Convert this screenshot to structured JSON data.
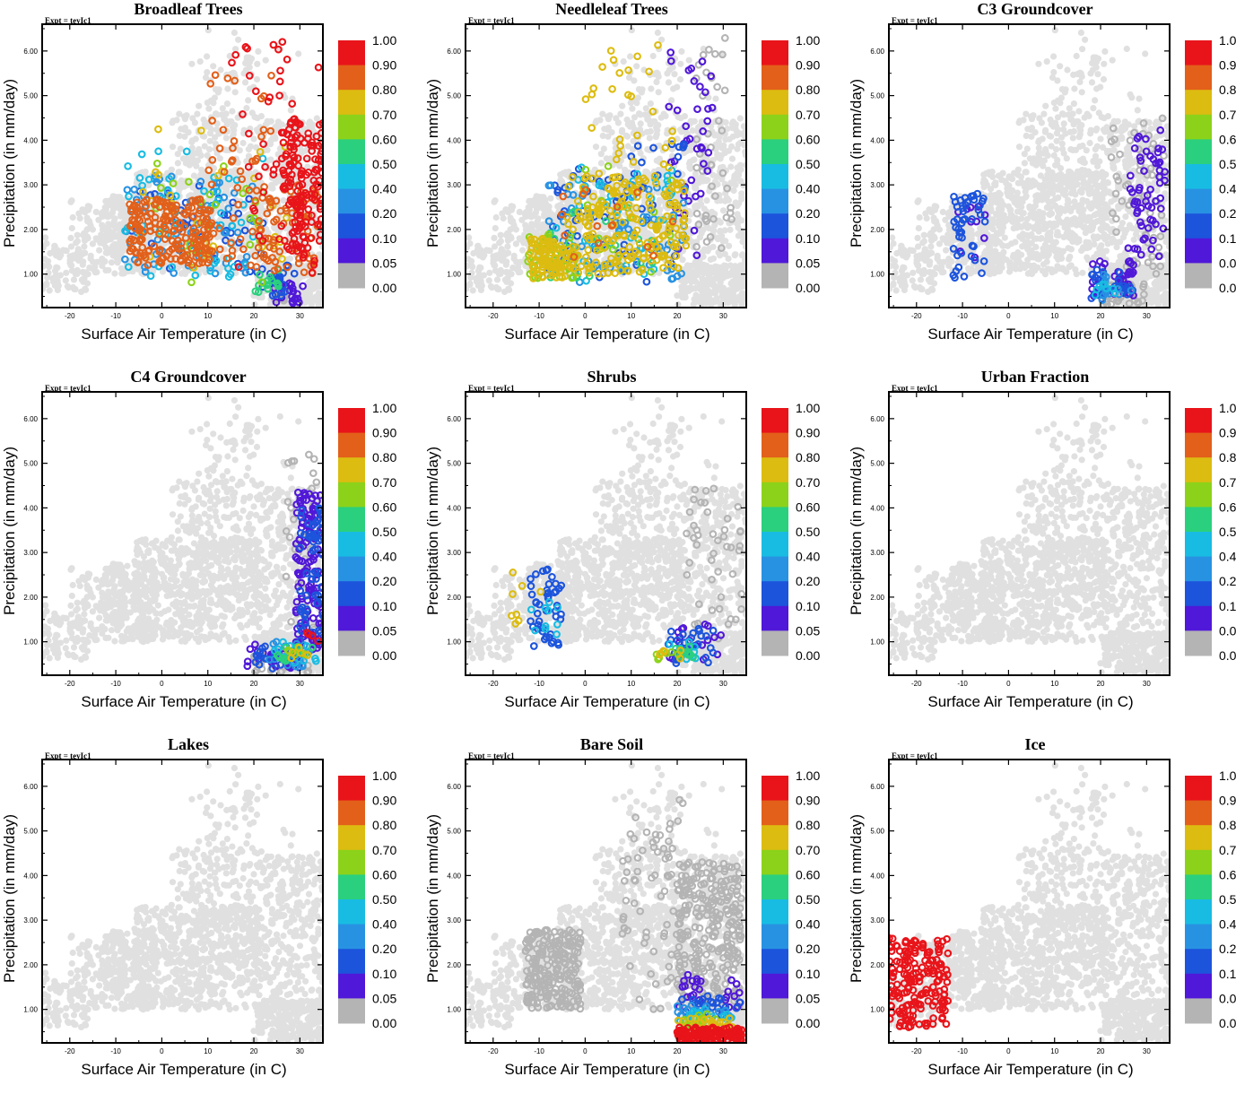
{
  "experiment_label": "Expt = teyIc1",
  "colorbar": {
    "labels": [
      "1.00",
      "0.90",
      "0.80",
      "0.70",
      "0.60",
      "0.50",
      "0.40",
      "0.20",
      "0.10",
      "0.05",
      "0.00"
    ],
    "colors": [
      "#e8141a",
      "#e2601a",
      "#dcbc10",
      "#8cd21a",
      "#2ad07e",
      "#18bce2",
      "#2892e2",
      "#1c54dc",
      "#5018d8",
      "#b4b4b4"
    ]
  },
  "background_point_color": "#e0e0e0",
  "chart_data": [
    {
      "type": "scatter",
      "title": "Broadleaf Trees",
      "xlabel": "Surface Air Temperature (in C)",
      "ylabel": "Precipitation (in mm/day)",
      "xlim": [
        -26,
        35
      ],
      "ylim": [
        0.25,
        6.6
      ],
      "xticks": [
        "-20",
        "-10",
        "0",
        "10",
        "20",
        "30"
      ],
      "yticks": [
        "1.00",
        "2.00",
        "3.00",
        "4.00",
        "5.00",
        "6.00"
      ],
      "series": [
        {
          "name": "fraction 0.00",
          "fraction": 0.0,
          "cloud": [
            [
              24,
              27,
              0.4,
              0.75,
              35
            ]
          ]
        },
        {
          "name": "fraction 0.05",
          "fraction": 0.05,
          "cloud": [
            [
              24,
              31,
              0.35,
              0.8,
              22
            ]
          ]
        },
        {
          "name": "fraction 0.10",
          "fraction": 0.1,
          "cloud": [
            [
              -7,
              22,
              1.0,
              3.0,
              40
            ],
            [
              20,
              29,
              0.5,
              1.2,
              20
            ]
          ]
        },
        {
          "name": "fraction 0.20",
          "fraction": 0.2,
          "cloud": [
            [
              -8,
              20,
              1.0,
              3.2,
              70
            ]
          ]
        },
        {
          "name": "fraction 0.40",
          "fraction": 0.4,
          "cloud": [
            [
              -8,
              22,
              0.8,
              3.8,
              55
            ]
          ]
        },
        {
          "name": "fraction 0.50",
          "fraction": 0.5,
          "cloud": [
            [
              20,
              27,
              0.55,
              1.1,
              15
            ]
          ]
        },
        {
          "name": "fraction 0.60",
          "fraction": 0.6,
          "cloud": [
            [
              -5,
              24,
              0.8,
              3.5,
              25
            ]
          ]
        },
        {
          "name": "fraction 0.70",
          "fraction": 0.7,
          "cloud": [
            [
              -5,
              28,
              1.0,
              4.5,
              30
            ]
          ]
        },
        {
          "name": "fraction 0.80",
          "fraction": 0.8,
          "cloud": [
            [
              -7,
              11,
              1.2,
              2.7,
              190
            ],
            [
              10,
              24,
              1.0,
              5.5,
              45
            ],
            [
              19,
              34,
              1.0,
              3.0,
              70
            ]
          ]
        },
        {
          "name": "fraction 0.90",
          "fraction": 0.9,
          "cloud": [
            [
              26,
              35,
              1.5,
              4.5,
              140
            ],
            [
              15,
              35,
              1.0,
              6.4,
              55
            ]
          ]
        }
      ]
    },
    {
      "type": "scatter",
      "title": "Needleleaf Trees",
      "xlabel": "Surface Air Temperature (in C)",
      "ylabel": "Precipitation (in mm/day)",
      "xlim": [
        -26,
        35
      ],
      "ylim": [
        0.25,
        6.6
      ],
      "xticks": [
        "-20",
        "-10",
        "0",
        "10",
        "20",
        "30"
      ],
      "yticks": [
        "1.00",
        "2.00",
        "3.00",
        "4.00",
        "5.00",
        "6.00"
      ],
      "series": [
        {
          "name": "fraction 0.00",
          "fraction": 0.0,
          "cloud": [
            [
              24,
              32,
              1.5,
              6.3,
              40
            ]
          ]
        },
        {
          "name": "fraction 0.05",
          "fraction": 0.05,
          "cloud": [
            [
              18,
              28,
              1.0,
              6.3,
              40
            ]
          ]
        },
        {
          "name": "fraction 0.10",
          "fraction": 0.1,
          "cloud": [
            [
              -8,
              22,
              0.8,
              4.0,
              70
            ]
          ]
        },
        {
          "name": "fraction 0.20",
          "fraction": 0.2,
          "cloud": [
            [
              -8,
              22,
              0.8,
              3.0,
              80
            ]
          ]
        },
        {
          "name": "fraction 0.40",
          "fraction": 0.4,
          "cloud": [
            [
              -8,
              20,
              0.8,
              3.4,
              50
            ]
          ]
        },
        {
          "name": "fraction 0.50",
          "fraction": 0.5,
          "cloud": [
            [
              -10,
              15,
              0.9,
              2.5,
              20
            ]
          ]
        },
        {
          "name": "fraction 0.60",
          "fraction": 0.6,
          "cloud": [
            [
              -13,
              -2,
              0.9,
              1.9,
              35
            ],
            [
              0,
              20,
              1.0,
              3.5,
              15
            ]
          ]
        },
        {
          "name": "fraction 0.70",
          "fraction": 0.7,
          "cloud": [
            [
              -12,
              -4,
              0.9,
              1.8,
              90
            ],
            [
              -4,
              22,
              1.0,
              3.2,
              210
            ],
            [
              0,
              20,
              3.0,
              6.3,
              30
            ]
          ]
        },
        {
          "name": "fraction 0.80",
          "fraction": 0.8,
          "cloud": [
            [
              -6,
              20,
              1.2,
              3.0,
              15
            ]
          ]
        }
      ]
    },
    {
      "type": "scatter",
      "title": "C3 Groundcover",
      "xlabel": "Surface Air Temperature (in C)",
      "ylabel": "Precipitation (in mm/day)",
      "xlim": [
        -26,
        35
      ],
      "ylim": [
        0.25,
        6.6
      ],
      "xticks": [
        "-20",
        "-10",
        "0",
        "10",
        "20",
        "30"
      ],
      "yticks": [
        "1.00",
        "2.00",
        "3.00",
        "4.00",
        "5.00",
        "6.00"
      ],
      "series": [
        {
          "name": "fraction 0.00",
          "fraction": 0.0,
          "cloud": [
            [
              22,
              34,
              1.0,
              4.5,
              60
            ],
            [
              20,
              30,
              0.3,
              0.8,
              35
            ]
          ]
        },
        {
          "name": "fraction 0.05",
          "fraction": 0.05,
          "cloud": [
            [
              26,
              34,
              1.2,
              4.3,
              60
            ],
            [
              18,
              28,
              0.5,
              1.3,
              35
            ],
            [
              -11,
              -5,
              1.2,
              2.6,
              10
            ]
          ]
        },
        {
          "name": "fraction 0.10",
          "fraction": 0.1,
          "cloud": [
            [
              -12,
              -5,
              0.9,
              2.8,
              45
            ],
            [
              18,
              27,
              0.4,
              1.2,
              30
            ]
          ]
        },
        {
          "name": "fraction 0.20",
          "fraction": 0.2,
          "cloud": [
            [
              20,
              27,
              0.4,
              1.0,
              12
            ]
          ]
        },
        {
          "name": "fraction 0.40",
          "fraction": 0.4,
          "cloud": [
            [
              18,
              24,
              0.5,
              0.8,
              8
            ]
          ]
        }
      ]
    },
    {
      "type": "scatter",
      "title": "C4 Groundcover",
      "xlabel": "Surface Air Temperature (in C)",
      "ylabel": "Precipitation (in mm/day)",
      "xlim": [
        -26,
        35
      ],
      "ylim": [
        0.25,
        6.6
      ],
      "xticks": [
        "-20",
        "-10",
        "0",
        "10",
        "20",
        "30"
      ],
      "yticks": [
        "1.00",
        "2.00",
        "3.00",
        "4.00",
        "5.00",
        "6.00"
      ],
      "series": [
        {
          "name": "fraction 0.00",
          "fraction": 0.0,
          "cloud": [
            [
              27,
              34,
              1.0,
              5.2,
              40
            ],
            [
              20,
              32,
              0.3,
              0.8,
              40
            ]
          ]
        },
        {
          "name": "fraction 0.05",
          "fraction": 0.05,
          "cloud": [
            [
              29,
              35,
              0.8,
              4.4,
              140
            ],
            [
              18,
              30,
              0.4,
              1.0,
              30
            ]
          ]
        },
        {
          "name": "fraction 0.10",
          "fraction": 0.1,
          "cloud": [
            [
              30,
              35,
              1.0,
              4.0,
              60
            ],
            [
              20,
              30,
              0.4,
              0.9,
              25
            ]
          ]
        },
        {
          "name": "fraction 0.20",
          "fraction": 0.2,
          "cloud": [
            [
              22,
              32,
              0.4,
              1.0,
              18
            ]
          ]
        },
        {
          "name": "fraction 0.40",
          "fraction": 0.4,
          "cloud": [
            [
              24,
              34,
              0.5,
              1.0,
              12
            ]
          ]
        },
        {
          "name": "fraction 0.50",
          "fraction": 0.5,
          "cloud": [
            [
              25,
              33,
              0.5,
              0.9,
              10
            ]
          ]
        },
        {
          "name": "fraction 0.60",
          "fraction": 0.6,
          "cloud": [
            [
              26,
              33,
              0.6,
              0.9,
              6
            ]
          ]
        },
        {
          "name": "fraction 0.70",
          "fraction": 0.7,
          "cloud": [
            [
              27,
              32,
              0.6,
              0.9,
              5
            ]
          ]
        },
        {
          "name": "fraction 0.90",
          "fraction": 0.9,
          "cloud": [
            [
              30,
              34,
              1.0,
              1.4,
              4
            ]
          ]
        }
      ]
    },
    {
      "type": "scatter",
      "title": "Shrubs",
      "xlabel": "Surface Air Temperature (in C)",
      "ylabel": "Precipitation (in mm/day)",
      "xlim": [
        -26,
        35
      ],
      "ylim": [
        0.25,
        6.6
      ],
      "xticks": [
        "-20",
        "-10",
        "0",
        "10",
        "20",
        "30"
      ],
      "yticks": [
        "1.00",
        "2.00",
        "3.00",
        "4.00",
        "5.00",
        "6.00"
      ],
      "series": [
        {
          "name": "fraction 0.00",
          "fraction": 0.0,
          "cloud": [
            [
              22,
              34,
              1.0,
              4.5,
              45
            ]
          ]
        },
        {
          "name": "fraction 0.05",
          "fraction": 0.05,
          "cloud": [
            [
              18,
              30,
              0.6,
              1.4,
              20
            ]
          ]
        },
        {
          "name": "fraction 0.10",
          "fraction": 0.1,
          "cloud": [
            [
              -12,
              -5,
              0.9,
              2.7,
              45
            ],
            [
              18,
              28,
              0.5,
              1.3,
              30
            ]
          ]
        },
        {
          "name": "fraction 0.40",
          "fraction": 0.4,
          "cloud": [
            [
              -12,
              -6,
              1.0,
              2.2,
              10
            ],
            [
              18,
              25,
              0.6,
              1.0,
              10
            ]
          ]
        },
        {
          "name": "fraction 0.50",
          "fraction": 0.5,
          "cloud": [
            [
              19,
              24,
              0.6,
              0.9,
              10
            ]
          ]
        },
        {
          "name": "fraction 0.60",
          "fraction": 0.6,
          "cloud": [
            [
              15,
              22,
              0.6,
              0.8,
              6
            ]
          ]
        },
        {
          "name": "fraction 0.70",
          "fraction": 0.7,
          "cloud": [
            [
              -16,
              -9,
              1.4,
              2.6,
              8
            ],
            [
              16,
              22,
              0.6,
              0.9,
              6
            ]
          ]
        }
      ]
    },
    {
      "type": "scatter",
      "title": "Urban Fraction",
      "xlabel": "Surface Air Temperature (in C)",
      "ylabel": "Precipitation (in mm/day)",
      "xlim": [
        -26,
        35
      ],
      "ylim": [
        0.25,
        6.6
      ],
      "xticks": [
        "-20",
        "-10",
        "0",
        "10",
        "20",
        "30"
      ],
      "yticks": [
        "1.00",
        "2.00",
        "3.00",
        "4.00",
        "5.00",
        "6.00"
      ],
      "series": []
    },
    {
      "type": "scatter",
      "title": "Lakes",
      "xlabel": "Surface Air Temperature (in C)",
      "ylabel": "Precipitation (in mm/day)",
      "xlim": [
        -26,
        35
      ],
      "ylim": [
        0.25,
        6.6
      ],
      "xticks": [
        "-20",
        "-10",
        "0",
        "10",
        "20",
        "30"
      ],
      "yticks": [
        "1.00",
        "2.00",
        "3.00",
        "4.00",
        "5.00",
        "6.00"
      ],
      "series": []
    },
    {
      "type": "scatter",
      "title": "Bare Soil",
      "xlabel": "Surface Air Temperature (in C)",
      "ylabel": "Precipitation (in mm/day)",
      "xlim": [
        -26,
        35
      ],
      "ylim": [
        0.25,
        6.6
      ],
      "xticks": [
        "-20",
        "-10",
        "0",
        "10",
        "20",
        "30"
      ],
      "yticks": [
        "1.00",
        "2.00",
        "3.00",
        "4.00",
        "5.00",
        "6.00"
      ],
      "series": [
        {
          "name": "fraction 0.00",
          "fraction": 0.0,
          "cloud": [
            [
              -13,
              -1,
              1.0,
              2.8,
              220
            ],
            [
              8,
              22,
              1.0,
              5.8,
              80
            ],
            [
              20,
              34,
              1.0,
              4.3,
              260
            ]
          ]
        },
        {
          "name": "fraction 0.05",
          "fraction": 0.05,
          "cloud": [
            [
              20,
              34,
              1.0,
              1.8,
              25
            ]
          ]
        },
        {
          "name": "fraction 0.10",
          "fraction": 0.1,
          "cloud": [
            [
              21,
              34,
              0.8,
              1.3,
              25
            ]
          ]
        },
        {
          "name": "fraction 0.20",
          "fraction": 0.2,
          "cloud": [
            [
              20,
              32,
              0.7,
              1.1,
              20
            ]
          ]
        },
        {
          "name": "fraction 0.40",
          "fraction": 0.4,
          "cloud": [
            [
              20,
              33,
              0.7,
              1.0,
              15
            ]
          ]
        },
        {
          "name": "fraction 0.60",
          "fraction": 0.6,
          "cloud": [
            [
              20,
              30,
              0.6,
              0.9,
              15
            ]
          ]
        },
        {
          "name": "fraction 0.70",
          "fraction": 0.7,
          "cloud": [
            [
              20,
              32,
              0.6,
              0.8,
              20
            ]
          ]
        },
        {
          "name": "fraction 0.90",
          "fraction": 0.9,
          "cloud": [
            [
              20,
              34,
              0.3,
              0.6,
              140
            ]
          ]
        }
      ]
    },
    {
      "type": "scatter",
      "title": "Ice",
      "xlabel": "Surface Air Temperature (in C)",
      "ylabel": "Precipitation (in mm/day)",
      "xlim": [
        -26,
        35
      ],
      "ylim": [
        0.25,
        6.6
      ],
      "xticks": [
        "-20",
        "-10",
        "0",
        "10",
        "20",
        "30"
      ],
      "yticks": [
        "1.00",
        "2.00",
        "3.00",
        "4.00",
        "5.00",
        "6.00"
      ],
      "series": [
        {
          "name": "fraction 0.90",
          "fraction": 0.9,
          "cloud": [
            [
              -26,
              -13,
              0.6,
              2.6,
              180
            ]
          ]
        }
      ]
    }
  ]
}
